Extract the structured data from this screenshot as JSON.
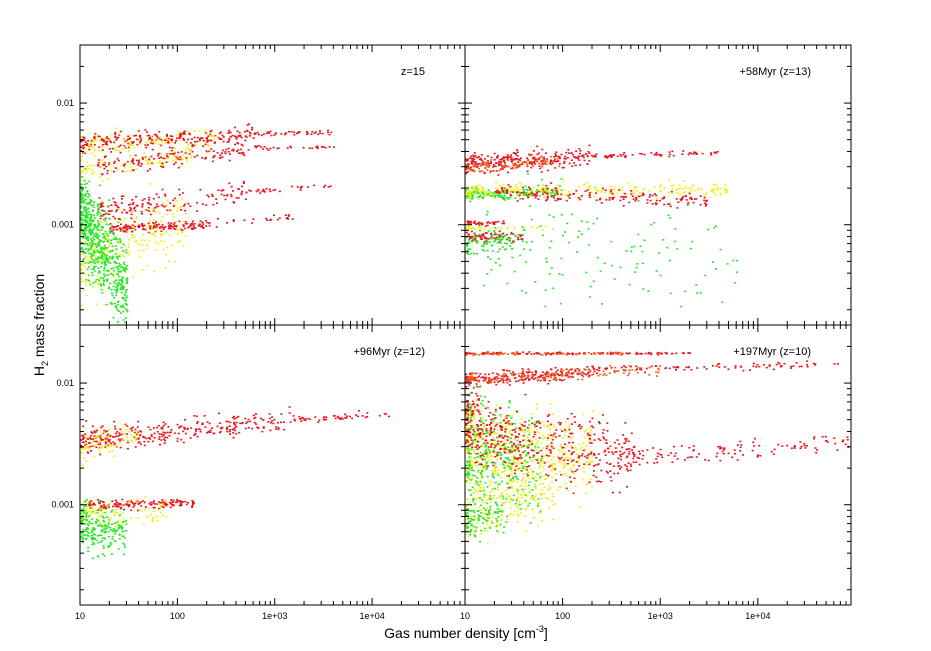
{
  "figure": {
    "xlabel": "Gas number density [cm",
    "xlabel_sup": "-3",
    "xlabel_tail": "]",
    "ylabel_main": "H",
    "ylabel_sub": "2",
    "ylabel_tail": " mass fraction"
  },
  "colors": {
    "red": "#e8141e",
    "orange": "#f06418",
    "yellow": "#f0f012",
    "green": "#28e628",
    "axis": "#000000"
  },
  "chart_data": [
    {
      "type": "scatter",
      "panel": "top-left",
      "label": "z=15",
      "xscale": "log",
      "yscale": "log",
      "xlim": [
        10,
        90000
      ],
      "ylim": [
        0.00015,
        0.03
      ],
      "x_ticks": [
        {
          "value": 10,
          "label": ""
        },
        {
          "value": 100,
          "label": ""
        },
        {
          "value": 1000,
          "label": ""
        },
        {
          "value": 10000,
          "label": ""
        }
      ],
      "y_ticks": [
        {
          "value": 0.001,
          "label": "0.001"
        },
        {
          "value": 0.01,
          "label": "0.01"
        }
      ],
      "clusters": [
        {
          "color": "red",
          "x_range": [
            10,
            600
          ],
          "y_start": 0.0047,
          "y_end": 0.0057,
          "spread": 0.07,
          "count": 240
        },
        {
          "color": "yellow",
          "x_range": [
            10,
            250
          ],
          "y_start": 0.0044,
          "y_end": 0.0054,
          "spread": 0.1,
          "count": 90
        },
        {
          "color": "red",
          "x_range": [
            600,
            4000
          ],
          "y_start": 0.0057,
          "y_end": 0.0058,
          "spread": 0.02,
          "count": 45
        },
        {
          "color": "red",
          "x_range": [
            15,
            500
          ],
          "y_start": 0.003,
          "y_end": 0.0043,
          "spread": 0.08,
          "count": 150
        },
        {
          "color": "yellow",
          "x_range": [
            10,
            150
          ],
          "y_start": 0.0028,
          "y_end": 0.0038,
          "spread": 0.1,
          "count": 80
        },
        {
          "color": "red",
          "x_range": [
            500,
            4000
          ],
          "y_start": 0.0043,
          "y_end": 0.0045,
          "spread": 0.02,
          "count": 30
        },
        {
          "color": "red",
          "x_range": [
            15,
            500
          ],
          "y_start": 0.0013,
          "y_end": 0.0019,
          "spread": 0.09,
          "count": 150
        },
        {
          "color": "red",
          "x_range": [
            500,
            4000
          ],
          "y_start": 0.0019,
          "y_end": 0.0021,
          "spread": 0.02,
          "count": 30
        },
        {
          "color": "red",
          "x_range": [
            20,
            200
          ],
          "y_start": 0.00095,
          "y_end": 0.00102,
          "spread": 0.04,
          "count": 150
        },
        {
          "color": "red",
          "x_range": [
            200,
            1500
          ],
          "y_start": 0.00102,
          "y_end": 0.00118,
          "spread": 0.04,
          "count": 25
        },
        {
          "color": "yellow",
          "x_range": [
            10,
            120
          ],
          "y_start": 0.0005,
          "y_end": 0.0011,
          "spread": 0.3,
          "count": 220
        },
        {
          "color": "green",
          "x_range": [
            10,
            30
          ],
          "y_start": 0.0012,
          "y_end": 0.0003,
          "spread": 0.35,
          "count": 600
        }
      ]
    },
    {
      "type": "scatter",
      "panel": "top-right",
      "label": "+58Myr (z=13)",
      "xscale": "log",
      "yscale": "log",
      "xlim": [
        10,
        90000
      ],
      "ylim": [
        0.00015,
        0.03
      ],
      "x_ticks": [
        {
          "value": 10,
          "label": ""
        },
        {
          "value": 100,
          "label": ""
        },
        {
          "value": 1000,
          "label": ""
        },
        {
          "value": 10000,
          "label": ""
        }
      ],
      "y_ticks": [
        {
          "value": 0.001,
          "label": ""
        },
        {
          "value": 0.01,
          "label": ""
        }
      ],
      "clusters": [
        {
          "color": "red",
          "x_range": [
            10,
            200
          ],
          "y_start": 0.0032,
          "y_end": 0.0037,
          "spread": 0.08,
          "count": 280
        },
        {
          "color": "orange",
          "x_range": [
            10,
            100
          ],
          "y_start": 0.003,
          "y_end": 0.0034,
          "spread": 0.05,
          "count": 80
        },
        {
          "color": "red",
          "x_range": [
            200,
            4000
          ],
          "y_start": 0.0037,
          "y_end": 0.004,
          "spread": 0.02,
          "count": 60
        },
        {
          "color": "green",
          "x_range": [
            10,
            100
          ],
          "y_start": 0.0018,
          "y_end": 0.0019,
          "spread": 0.05,
          "count": 160
        },
        {
          "color": "yellow",
          "x_range": [
            10,
            5000
          ],
          "y_start": 0.0019,
          "y_end": 0.002,
          "spread": 0.06,
          "count": 220
        },
        {
          "color": "red",
          "x_range": [
            20,
            3000
          ],
          "y_start": 0.0019,
          "y_end": 0.0016,
          "spread": 0.06,
          "count": 180
        },
        {
          "color": "red",
          "x_range": [
            10,
            25
          ],
          "y_start": 0.00105,
          "y_end": 0.00105,
          "spread": 0.02,
          "count": 40
        },
        {
          "color": "red",
          "x_range": [
            10,
            40
          ],
          "y_start": 0.00082,
          "y_end": 0.0008,
          "spread": 0.04,
          "count": 80
        },
        {
          "color": "green",
          "x_range": [
            10,
            40
          ],
          "y_start": 0.0007,
          "y_end": 0.0008,
          "spread": 0.1,
          "count": 80
        },
        {
          "color": "yellow",
          "x_range": [
            10,
            80
          ],
          "y_start": 0.00095,
          "y_end": 0.00095,
          "spread": 0.02,
          "count": 30
        },
        {
          "color": "green",
          "x_range": [
            15,
            6000
          ],
          "y_start": 0.0008,
          "y_end": 0.0005,
          "spread": 0.45,
          "count": 140
        }
      ]
    },
    {
      "type": "scatter",
      "panel": "bottom-left",
      "label": "+96Myr (z=12)",
      "xscale": "log",
      "yscale": "log",
      "xlim": [
        10,
        90000
      ],
      "ylim": [
        0.00015,
        0.03
      ],
      "x_ticks": [
        {
          "value": 10,
          "label": "10"
        },
        {
          "value": 100,
          "label": "100"
        },
        {
          "value": 1000,
          "label": "1e+03"
        },
        {
          "value": 10000,
          "label": "1e+04"
        }
      ],
      "y_ticks": [
        {
          "value": 0.001,
          "label": "0.001"
        },
        {
          "value": 0.01,
          "label": "0.01"
        }
      ],
      "clusters": [
        {
          "color": "red",
          "x_range": [
            10,
            1500
          ],
          "y_start": 0.0035,
          "y_end": 0.005,
          "spread": 0.1,
          "count": 320
        },
        {
          "color": "yellow",
          "x_range": [
            10,
            40
          ],
          "y_start": 0.003,
          "y_end": 0.0038,
          "spread": 0.12,
          "count": 70
        },
        {
          "color": "red",
          "x_range": [
            1500,
            15000
          ],
          "y_start": 0.005,
          "y_end": 0.0056,
          "spread": 0.03,
          "count": 50
        },
        {
          "color": "red",
          "x_range": [
            12,
            150
          ],
          "y_start": 0.001,
          "y_end": 0.00105,
          "spread": 0.04,
          "count": 150
        },
        {
          "color": "yellow",
          "x_range": [
            10,
            80
          ],
          "y_start": 0.00085,
          "y_end": 0.0009,
          "spread": 0.12,
          "count": 100
        },
        {
          "color": "green",
          "x_range": [
            10,
            30
          ],
          "y_start": 0.0007,
          "y_end": 0.00055,
          "spread": 0.2,
          "count": 200
        }
      ]
    },
    {
      "type": "scatter",
      "panel": "bottom-right",
      "label": "+197Myr (z=10)",
      "xscale": "log",
      "yscale": "log",
      "xlim": [
        10,
        90000
      ],
      "ylim": [
        0.00015,
        0.03
      ],
      "x_ticks": [
        {
          "value": 10,
          "label": "10"
        },
        {
          "value": 100,
          "label": "100"
        },
        {
          "value": 1000,
          "label": "1e+03"
        },
        {
          "value": 10000,
          "label": "1e+04"
        }
      ],
      "y_ticks": [
        {
          "value": 0.001,
          "label": ""
        },
        {
          "value": 0.01,
          "label": ""
        }
      ],
      "clusters": [
        {
          "color": "red",
          "x_range": [
            10,
            2000
          ],
          "y_start": 0.0178,
          "y_end": 0.0178,
          "spread": 0.01,
          "count": 140
        },
        {
          "color": "orange",
          "x_range": [
            10,
            500
          ],
          "y_start": 0.0176,
          "y_end": 0.0178,
          "spread": 0.01,
          "count": 60
        },
        {
          "color": "red",
          "x_range": [
            10,
            200
          ],
          "y_start": 0.0108,
          "y_end": 0.0125,
          "spread": 0.06,
          "count": 220
        },
        {
          "color": "orange",
          "x_range": [
            10,
            1000
          ],
          "y_start": 0.011,
          "y_end": 0.013,
          "spread": 0.05,
          "count": 120
        },
        {
          "color": "red",
          "x_range": [
            200,
            70000
          ],
          "y_start": 0.013,
          "y_end": 0.0145,
          "spread": 0.03,
          "count": 90
        },
        {
          "color": "red",
          "x_range": [
            10,
            14
          ],
          "y_start": 0.006,
          "y_end": 0.0065,
          "spread": 0.1,
          "count": 40
        },
        {
          "color": "yellow",
          "x_range": [
            10,
            200
          ],
          "y_start": 0.003,
          "y_end": 0.0025,
          "spread": 0.35,
          "count": 500
        },
        {
          "color": "green",
          "x_range": [
            10,
            60
          ],
          "y_start": 0.003,
          "y_end": 0.0022,
          "spread": 0.45,
          "count": 300
        },
        {
          "color": "red",
          "x_range": [
            10,
            500
          ],
          "y_start": 0.004,
          "y_end": 0.0025,
          "spread": 0.28,
          "count": 450
        },
        {
          "color": "red",
          "x_range": [
            500,
            90000
          ],
          "y_start": 0.0025,
          "y_end": 0.0033,
          "spread": 0.08,
          "count": 120
        },
        {
          "color": "yellow",
          "x_range": [
            10,
            80
          ],
          "y_start": 0.0009,
          "y_end": 0.0013,
          "spread": 0.25,
          "count": 200
        },
        {
          "color": "green",
          "x_range": [
            10,
            25
          ],
          "y_start": 0.00075,
          "y_end": 0.0009,
          "spread": 0.15,
          "count": 100
        }
      ]
    }
  ]
}
